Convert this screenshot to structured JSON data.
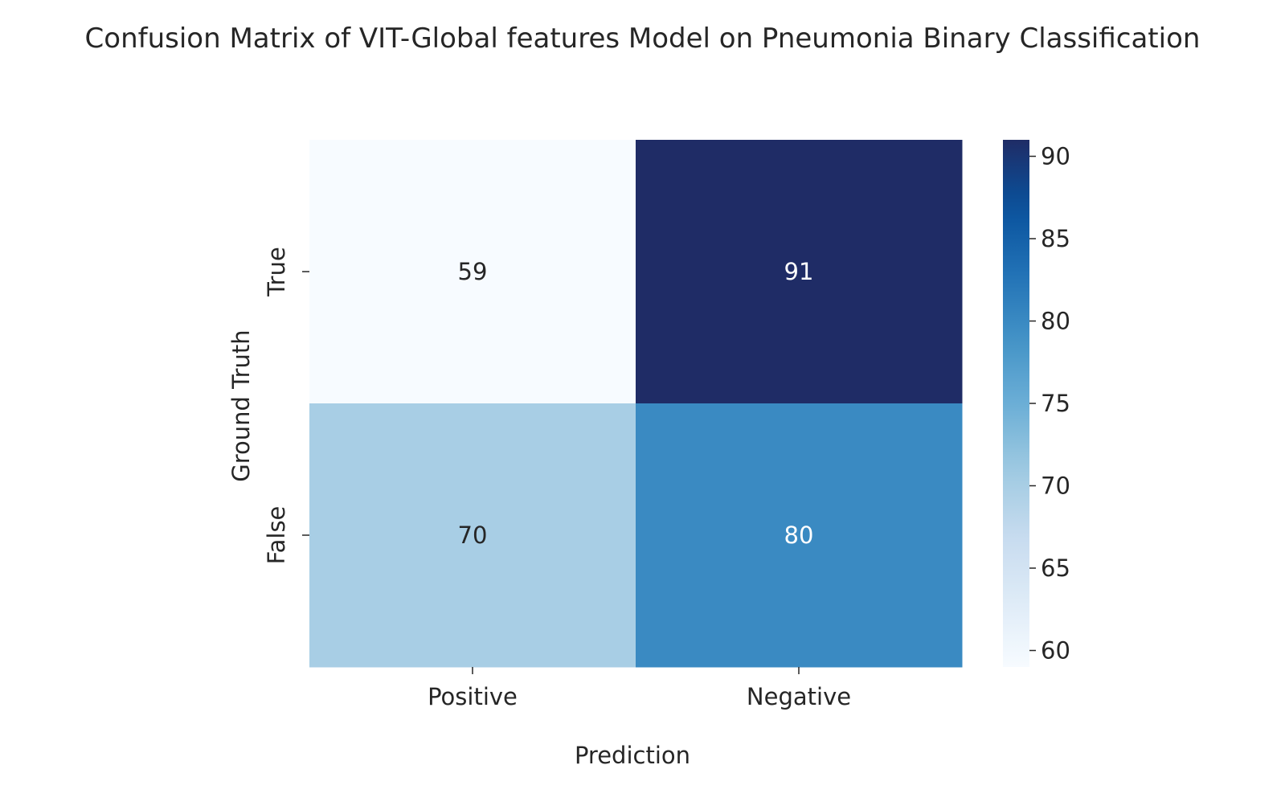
{
  "chart_data": {
    "type": "heatmap",
    "title": "Confusion Matrix of VIT-Global features Model on Pneumonia Binary Classification",
    "xlabel": "Prediction",
    "ylabel": "Ground Truth",
    "x_categories": [
      "Positive",
      "Negative"
    ],
    "y_categories": [
      "True",
      "False"
    ],
    "values": [
      [
        59,
        91
      ],
      [
        70,
        80
      ]
    ],
    "colorbar": {
      "range": [
        59,
        91
      ],
      "ticks": [
        60,
        65,
        70,
        75,
        80,
        85,
        90
      ],
      "colormap": "Blues"
    },
    "colors": {
      "low": "#f7fbff",
      "high": "#1f2c66"
    }
  }
}
